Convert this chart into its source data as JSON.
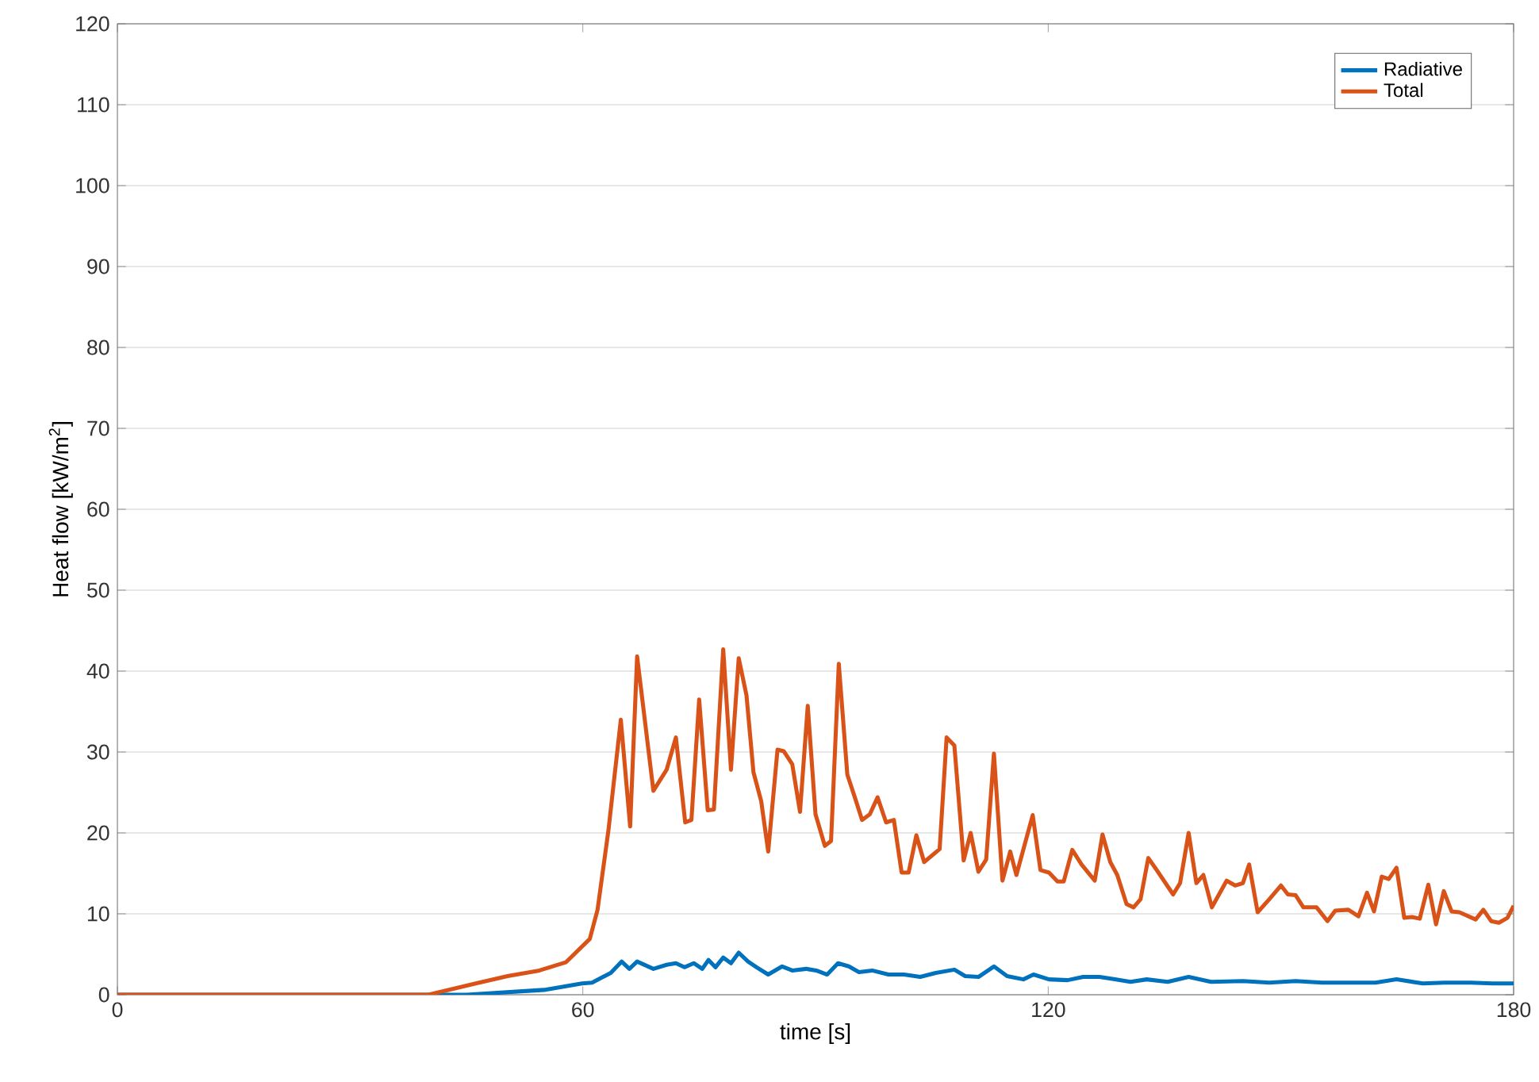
{
  "chart_data": {
    "type": "line",
    "xlabel": "time [s]",
    "ylabel": "Heat flow [kW/m$^{2}$]",
    "xlim": [
      0,
      180
    ],
    "ylim": [
      0,
      120
    ],
    "xticks": [
      0,
      60,
      120,
      180
    ],
    "yticks": [
      0,
      10,
      20,
      30,
      40,
      50,
      60,
      70,
      80,
      90,
      100,
      110,
      120
    ],
    "grid": "y",
    "legend": "top right",
    "series": [
      {
        "name": "Radiative",
        "color": "#0072bd",
        "x": [
          0,
          45,
          55,
          59.9,
          61.2,
          62.6,
          63.6,
          65.0,
          66.0,
          67.0,
          69.1,
          70.8,
          72.0,
          73.1,
          74.3,
          75.4,
          76.2,
          77.1,
          78.1,
          79.1,
          80.1,
          81.3,
          82.4,
          83.9,
          85.7,
          87.0,
          88.8,
          90.1,
          91.5,
          92.9,
          94.3,
          95.6,
          97.3,
          99.4,
          101.4,
          103.5,
          105.5,
          107.9,
          109.3,
          111.0,
          113.0,
          114.7,
          116.8,
          118.1,
          120.1,
          122.5,
          124.5,
          126.6,
          128.6,
          130.6,
          132.7,
          135.4,
          138.1,
          141.0,
          145.1,
          148.5,
          151.9,
          155.3,
          158.7,
          162.2,
          164.9,
          168.3,
          171.1,
          174.5,
          177.3,
          180
        ],
        "values": [
          0,
          0,
          0.6,
          1.4,
          1.5,
          2.2,
          2.7,
          4.1,
          3.2,
          4.1,
          3.2,
          3.7,
          3.9,
          3.4,
          3.9,
          3.2,
          4.3,
          3.4,
          4.6,
          3.9,
          5.2,
          4.1,
          3.4,
          2.5,
          3.5,
          3.0,
          3.2,
          3.0,
          2.5,
          3.9,
          3.5,
          2.8,
          3.0,
          2.5,
          2.5,
          2.2,
          2.7,
          3.1,
          2.3,
          2.2,
          3.5,
          2.3,
          1.9,
          2.5,
          1.9,
          1.8,
          2.2,
          2.2,
          1.9,
          1.6,
          1.9,
          1.6,
          2.2,
          1.6,
          1.7,
          1.5,
          1.7,
          1.5,
          1.5,
          1.5,
          1.9,
          1.4,
          1.5,
          1.5,
          1.4,
          1.4
        ]
      },
      {
        "name": "Total",
        "color": "#d95319",
        "x": [
          0,
          40.1,
          46.2,
          50.3,
          54.4,
          57.8,
          60.9,
          61.9,
          63.3,
          64.9,
          66.1,
          67.0,
          69.1,
          70.8,
          72.0,
          73.2,
          74.0,
          75.0,
          76.1,
          76.9,
          78.1,
          79.1,
          80.1,
          81.1,
          82.0,
          83.0,
          83.9,
          85.1,
          85.9,
          87.0,
          88.0,
          89.0,
          90.0,
          91.2,
          92.0,
          93.0,
          94.1,
          95.1,
          96.0,
          97.0,
          98.0,
          99.1,
          100.1,
          101.1,
          102.0,
          103.0,
          104.0,
          106.0,
          106.9,
          107.9,
          109.1,
          110.0,
          111.0,
          112.0,
          113.0,
          114.1,
          115.1,
          115.9,
          118.0,
          119.0,
          120.1,
          121.2,
          122.0,
          123.1,
          124.3,
          126.0,
          127.0,
          128.0,
          128.9,
          130.1,
          131.0,
          131.9,
          132.9,
          134.0,
          136.1,
          137.0,
          138.1,
          139.1,
          140.0,
          141.1,
          143.0,
          144.1,
          145.1,
          145.9,
          147.0,
          148.5,
          150.0,
          150.9,
          151.9,
          152.9,
          154.6,
          156.0,
          157.0,
          158.7,
          160.0,
          161.1,
          162.0,
          163.0,
          163.9,
          164.9,
          165.9,
          166.9,
          167.9,
          169.0,
          170.0,
          171.0,
          172.0,
          173.0,
          175.1,
          176.1,
          177.1,
          178.1,
          179.2,
          180
        ],
        "values": [
          0,
          0,
          1.4,
          2.3,
          3.0,
          4.0,
          6.9,
          10.5,
          20.3,
          34.0,
          20.8,
          41.8,
          25.2,
          27.8,
          31.8,
          21.3,
          21.6,
          36.5,
          22.8,
          22.9,
          42.7,
          27.8,
          41.6,
          37.0,
          27.5,
          23.9,
          17.7,
          30.3,
          30.1,
          28.5,
          22.6,
          35.7,
          22.3,
          18.4,
          19.0,
          40.9,
          27.2,
          24.3,
          21.6,
          22.3,
          24.4,
          21.3,
          21.6,
          15.1,
          15.1,
          19.7,
          16.4,
          18.0,
          31.8,
          30.8,
          16.6,
          20.0,
          15.2,
          16.7,
          29.8,
          14.1,
          17.7,
          14.8,
          22.2,
          15.4,
          15.1,
          14.0,
          14.0,
          17.9,
          16.1,
          14.1,
          19.8,
          16.4,
          14.8,
          11.2,
          10.8,
          11.8,
          16.9,
          15.4,
          12.4,
          13.8,
          20.0,
          13.8,
          14.8,
          10.8,
          14.1,
          13.5,
          13.8,
          16.1,
          10.2,
          11.8,
          13.5,
          12.4,
          12.3,
          10.8,
          10.8,
          9.1,
          10.4,
          10.5,
          9.7,
          12.6,
          10.3,
          14.6,
          14.3,
          15.7,
          9.5,
          9.6,
          9.4,
          13.6,
          8.7,
          12.8,
          10.3,
          10.2,
          9.3,
          10.5,
          9.1,
          8.9,
          9.5,
          11.0
        ]
      }
    ]
  }
}
